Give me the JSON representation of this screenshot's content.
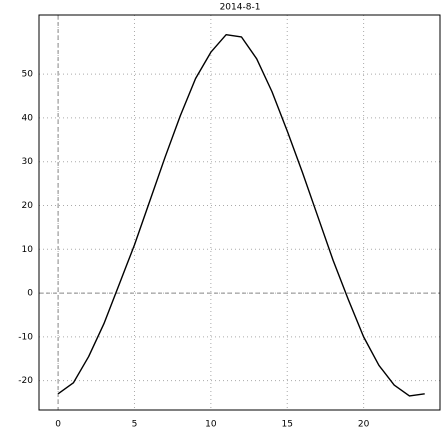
{
  "chart_data": {
    "type": "line",
    "title": "2014-8-1",
    "x": [
      0,
      1,
      2,
      3,
      4,
      5,
      6,
      7,
      8,
      9,
      10,
      11,
      12,
      13,
      14,
      15,
      16,
      17,
      18,
      19,
      20,
      21,
      22,
      23,
      24
    ],
    "series": [
      {
        "color": "#000000",
        "values": [
          -23,
          -20.5,
          -14.5,
          -7,
          2,
          11,
          21,
          31,
          40.5,
          49,
          55,
          59,
          58.5,
          53.5,
          46,
          37,
          27.5,
          17.5,
          7.5,
          -1.5,
          -10,
          -16.5,
          -21,
          -23.5,
          -23
        ]
      }
    ],
    "xlim": [
      -1.25,
      25
    ],
    "ylim": [
      -26.7,
      63.5
    ],
    "xticks": [
      0,
      5,
      10,
      15,
      20
    ],
    "yticks": [
      -20,
      -10,
      0,
      10,
      20,
      30,
      40,
      50
    ],
    "grid": true
  }
}
